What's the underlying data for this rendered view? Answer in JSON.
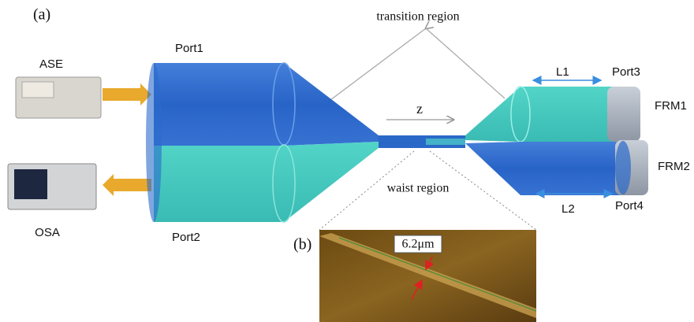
{
  "panel_a": {
    "label": "(a)",
    "transition": "transition region",
    "waist": "waist region",
    "axis": "z",
    "ports": {
      "port1": "Port1",
      "port2": "Port2",
      "port3": "Port3",
      "port4": "Port4"
    },
    "devices": {
      "source": "ASE",
      "analyzer": "OSA",
      "mirror1": "FRM1",
      "mirror2": "FRM2"
    },
    "lengths": {
      "l1": "L1",
      "l2": "L2"
    }
  },
  "panel_b": {
    "label": "(b)",
    "diameter": "6.2μm"
  }
}
